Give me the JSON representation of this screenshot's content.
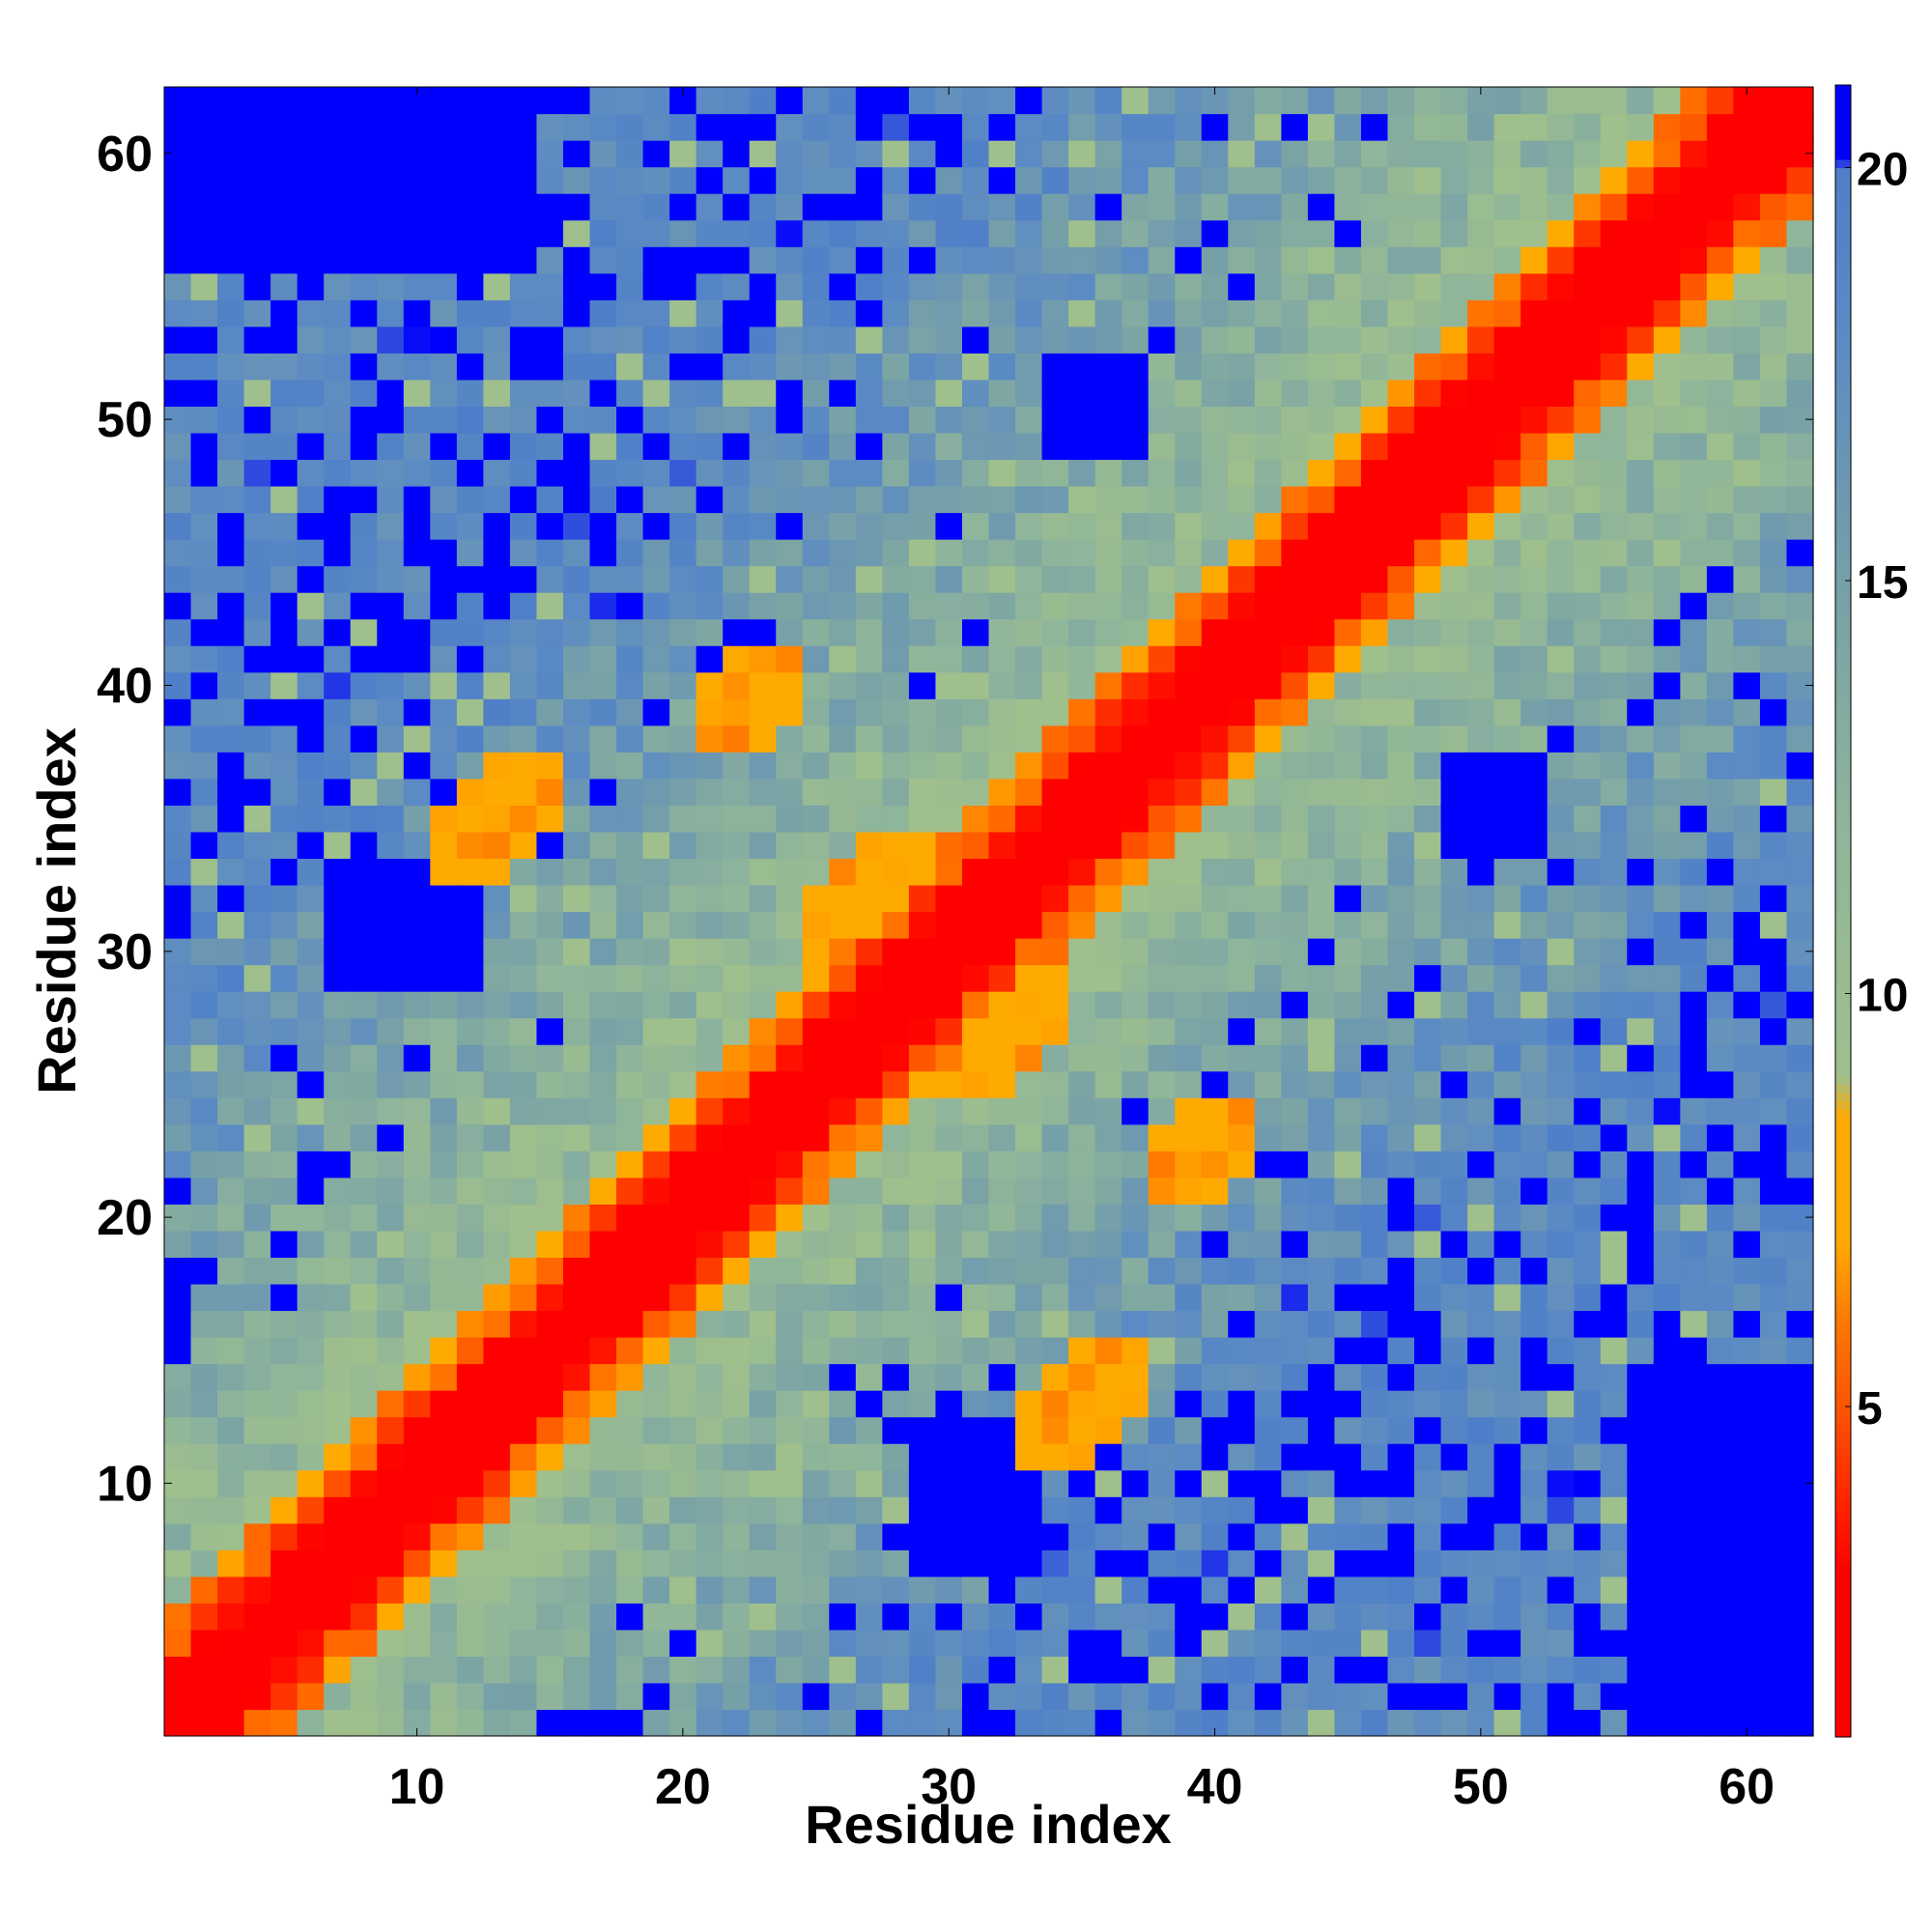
{
  "chart_data": {
    "type": "heatmap",
    "title": "",
    "xlabel": "Residue index",
    "ylabel": "Residue index",
    "xlim": [
      0.5,
      62.5
    ],
    "ylim": [
      0.5,
      62.5
    ],
    "x_ticks": [
      10,
      20,
      30,
      40,
      50,
      60
    ],
    "y_ticks": [
      10,
      20,
      30,
      40,
      50,
      60
    ],
    "grid": false,
    "n_residues": 62,
    "colorbar": {
      "range": [
        1,
        21
      ],
      "ticks": [
        5,
        10,
        15,
        20
      ],
      "stops": [
        {
          "value": 1,
          "color": "#ff0000"
        },
        {
          "value": 3,
          "color": "#ff0000"
        },
        {
          "value": 5,
          "color": "#ff5500"
        },
        {
          "value": 6,
          "color": "#ff7700"
        },
        {
          "value": 7,
          "color": "#ffaa00"
        },
        {
          "value": 8.5,
          "color": "#ffaa00"
        },
        {
          "value": 9,
          "color": "#9fbf8c"
        },
        {
          "value": 12,
          "color": "#8fb59a"
        },
        {
          "value": 15,
          "color": "#76a0a8"
        },
        {
          "value": 18,
          "color": "#5b8ac4"
        },
        {
          "value": 20,
          "color": "#4f7fc8"
        },
        {
          "value": 20.1,
          "color": "#0000ff"
        },
        {
          "value": 21,
          "color": "#0000ff"
        }
      ]
    },
    "helix_contacts": [
      [
        12,
        34
      ],
      [
        13,
        35
      ],
      [
        14,
        36
      ],
      [
        22,
        39
      ],
      [
        23,
        40
      ],
      [
        26,
        31
      ],
      [
        27,
        32
      ],
      [
        28,
        33
      ]
    ],
    "distant_regions": [
      {
        "x": [
          1,
          14
        ],
        "y": [
          56,
          62
        ]
      },
      {
        "x": [
          8,
          12
        ],
        "y": [
          29,
          33
        ]
      },
      {
        "x": [
          29,
          33
        ],
        "y": [
          7,
          12
        ]
      },
      {
        "x": [
          56,
          62
        ],
        "y": [
          8,
          14
        ]
      },
      {
        "x": [
          49,
          52
        ],
        "y": [
          34,
          37
        ]
      },
      {
        "x": [
          34,
          37
        ],
        "y": [
          49,
          52
        ]
      },
      {
        "x": [
          15,
          18
        ],
        "y": [
          1,
          1
        ]
      },
      {
        "x": [
          1,
          1
        ],
        "y": [
          15,
          18
        ]
      }
    ],
    "distance_matrix_generator": "symmetric contact map, value rises with |i-j| with local helical contacts"
  }
}
